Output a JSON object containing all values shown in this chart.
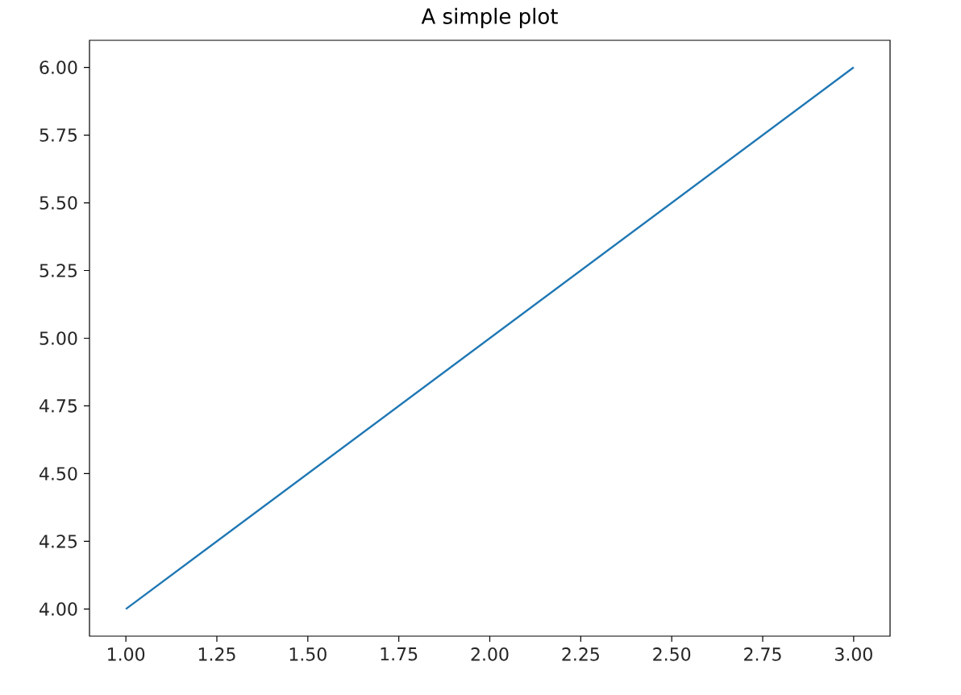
{
  "chart_data": {
    "type": "line",
    "title": "A simple plot",
    "x": [
      1,
      2,
      3
    ],
    "series": [
      {
        "color": "#1f77b4",
        "values": [
          4,
          5,
          6
        ]
      }
    ],
    "xlim": [
      0.9,
      3.1
    ],
    "ylim": [
      3.9,
      6.1
    ],
    "xticks": [
      {
        "value": 1.0,
        "label": "1.00"
      },
      {
        "value": 1.25,
        "label": "1.25"
      },
      {
        "value": 1.5,
        "label": "1.50"
      },
      {
        "value": 1.75,
        "label": "1.75"
      },
      {
        "value": 2.0,
        "label": "2.00"
      },
      {
        "value": 2.25,
        "label": "2.25"
      },
      {
        "value": 2.5,
        "label": "2.50"
      },
      {
        "value": 2.75,
        "label": "2.75"
      },
      {
        "value": 3.0,
        "label": "3.00"
      }
    ],
    "yticks": [
      {
        "value": 4.0,
        "label": "4.00"
      },
      {
        "value": 4.25,
        "label": "4.25"
      },
      {
        "value": 4.5,
        "label": "4.50"
      },
      {
        "value": 4.75,
        "label": "4.75"
      },
      {
        "value": 5.0,
        "label": "5.00"
      },
      {
        "value": 5.25,
        "label": "5.25"
      },
      {
        "value": 5.5,
        "label": "5.50"
      },
      {
        "value": 5.75,
        "label": "5.75"
      },
      {
        "value": 6.0,
        "label": "6.00"
      }
    ]
  }
}
